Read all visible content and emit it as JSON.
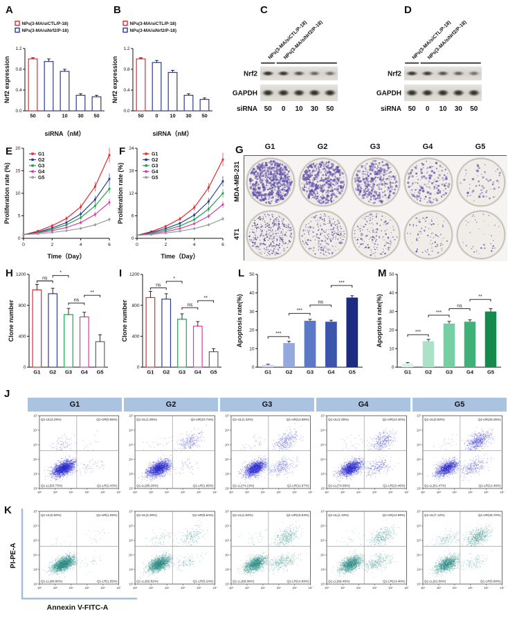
{
  "panel_labels": {
    "A": "A",
    "B": "B",
    "C": "C",
    "D": "D",
    "E": "E",
    "F": "F",
    "G": "G",
    "H": "H",
    "I": "I",
    "J": "J",
    "K": "K",
    "L": "L",
    "M": "M"
  },
  "colors": {
    "red": "#e8262d",
    "blue": "#2b3a8f",
    "green": "#1ca04a",
    "magenta": "#d63ba4",
    "gray": "#9a9a9a",
    "header_bg": "#a9c3e1",
    "annot_blue": "#a3bedb"
  },
  "blots": {
    "C": {
      "group_labels": [
        "NPs(3-MA/siCTL/P-18)",
        "NPs(3-MA/siNrf2/P-18)"
      ],
      "rows": [
        {
          "name": "Nrf2",
          "intensities": [
            0.88,
            0.82,
            0.6,
            0.45,
            0.4
          ]
        },
        {
          "name": "GAPDH",
          "intensities": [
            0.92,
            0.92,
            0.9,
            0.92,
            0.9
          ]
        }
      ],
      "sirna_label": "siRNA",
      "lanes": [
        "50",
        "0",
        "10",
        "30",
        "50"
      ]
    },
    "D": {
      "group_labels": [
        "NPs(3-MA/siCTL/P-18)",
        "NPs(3-MA/siNrf2/P-18)"
      ],
      "rows": [
        {
          "name": "Nrf2",
          "intensities": [
            0.8,
            0.75,
            0.58,
            0.48,
            0.38
          ]
        },
        {
          "name": "GAPDH",
          "intensities": [
            0.9,
            0.92,
            0.9,
            0.9,
            0.88
          ]
        }
      ],
      "sirna_label": "siRNA",
      "lanes": [
        "50",
        "0",
        "10",
        "30",
        "50"
      ]
    }
  },
  "colony": {
    "col_headers": [
      "G1",
      "G2",
      "G3",
      "G4",
      "G5"
    ],
    "rows": [
      {
        "name": "MDA-MB-231",
        "densities": [
          650,
          480,
          320,
          160,
          60
        ],
        "dot_r": 1.25,
        "dot_rgb": "96,82,168"
      },
      {
        "name": "4T1",
        "densities": [
          380,
          260,
          170,
          90,
          40
        ],
        "dot_r": 0.85,
        "dot_rgb": "84,72,150"
      }
    ]
  },
  "flow": {
    "headers": [
      "G1",
      "G2",
      "G3",
      "G4",
      "G5"
    ],
    "ticks": [
      "10²",
      "10³",
      "10⁴",
      "10⁵",
      "10⁶",
      "10⁷"
    ],
    "quadrant_prefix": "Q1",
    "x_axis_label": "Annexin V-FITC-A",
    "y_axis_label": "PI-PE-A",
    "J": {
      "point_color": "#2626cc",
      "plots": [
        {
          "UL": 3.29,
          "UR": 0.55,
          "LL": 93.73,
          "LR": 2.43
        },
        {
          "UL": 1.05,
          "UR": 10.74,
          "LL": 86.26,
          "LR": 1.95
        },
        {
          "UL": 1.32,
          "UR": 12.88,
          "LL": 74.13,
          "LR": 11.67
        },
        {
          "UL": 1.05,
          "UR": 14.4,
          "LL": 74.09,
          "LR": 10.46
        },
        {
          "UL": 0.82,
          "UR": 25.25,
          "LL": 61.47,
          "LR": 12.46
        }
      ]
    },
    "K": {
      "point_color": "#2c8c86",
      "plots": [
        {
          "UL": 0.5,
          "UR": 1.05,
          "LL": 96.9,
          "LR": 1.55
        },
        {
          "UL": 3.3,
          "UR": 8.64,
          "LL": 82.82,
          "LR": 5.24
        },
        {
          "UL": 1.5,
          "UR": 15.53,
          "LL": 68.08,
          "LR": 14.89
        },
        {
          "UL": 1.15,
          "UR": 14.99,
          "LL": 69.46,
          "LR": 14.4
        },
        {
          "UL": 7.12,
          "UR": 25.7,
          "LL": 61.5,
          "LR": 5.68
        }
      ]
    }
  },
  "chart_data": {
    "A": {
      "type": "bar",
      "ylabel": "Nrf2 expression",
      "xlabel": "siRNA（nM）",
      "categories": [
        "50",
        "0",
        "10",
        "30",
        "50"
      ],
      "values": [
        1.0,
        0.95,
        0.76,
        0.3,
        0.27
      ],
      "errors": [
        0.02,
        0.05,
        0.04,
        0.03,
        0.03
      ],
      "bar_strokes": [
        "#e8262d",
        "#2b3a8f",
        "#2b3a8f",
        "#2b3a8f",
        "#2b3a8f"
      ],
      "ylim": [
        0,
        1.2
      ],
      "yticks": [
        "0.0",
        "0.4",
        "0.8",
        "1.2"
      ],
      "legend": [
        {
          "label": "NPs(3-MA/siCTL/P-18)",
          "color": "#e8262d"
        },
        {
          "label": "NPs(3-MA/siNrf2/P-18)",
          "color": "#2b3a8f"
        }
      ]
    },
    "B": {
      "type": "bar",
      "ylabel": "Nrf2 expression",
      "xlabel": "siRNA（nM）",
      "categories": [
        "50",
        "0",
        "10",
        "30",
        "50"
      ],
      "values": [
        1.0,
        0.93,
        0.74,
        0.3,
        0.22
      ],
      "errors": [
        0.02,
        0.04,
        0.04,
        0.03,
        0.03
      ],
      "bar_strokes": [
        "#e8262d",
        "#2b3a8f",
        "#2b3a8f",
        "#2b3a8f",
        "#2b3a8f"
      ],
      "ylim": [
        0,
        1.2
      ],
      "yticks": [
        "0.0",
        "0.4",
        "0.8",
        "1.2"
      ],
      "legend": [
        {
          "label": "NPs(3-MA/siCTL/P-18)",
          "color": "#e8262d"
        },
        {
          "label": "NPs(3-MA/siNrf2/P-18)",
          "color": "#2b3a8f"
        }
      ]
    },
    "E": {
      "type": "line",
      "ylabel": "Proliferation rate (%)",
      "xlabel": "Time（Day）",
      "x": [
        0,
        1,
        2,
        3,
        4,
        5,
        6
      ],
      "xticks": [
        0,
        2,
        4,
        6
      ],
      "ylim": [
        0,
        20
      ],
      "yticks": [
        "0",
        "5",
        "10",
        "15",
        "20"
      ],
      "series": [
        {
          "name": "G1",
          "color": "#e8262d",
          "values": [
            0.8,
            1.6,
            2.8,
            4.4,
            7.0,
            11.5,
            18.5
          ]
        },
        {
          "name": "G2",
          "color": "#2b3a8f",
          "values": [
            0.8,
            1.4,
            2.3,
            3.5,
            5.4,
            8.6,
            13.2
          ]
        },
        {
          "name": "G3",
          "color": "#1ca04a",
          "values": [
            0.8,
            1.3,
            2.0,
            3.0,
            4.6,
            7.2,
            11.0
          ]
        },
        {
          "name": "G4",
          "color": "#d63ba4",
          "values": [
            0.8,
            1.2,
            1.7,
            2.4,
            3.5,
            5.3,
            8.0
          ]
        },
        {
          "name": "G5",
          "color": "#9a9a9a",
          "values": [
            0.8,
            1.0,
            1.3,
            1.7,
            2.2,
            3.0,
            4.2
          ]
        }
      ]
    },
    "F": {
      "type": "line",
      "ylabel": "Proliferation rate (%)",
      "xlabel": "Time（Day）",
      "x": [
        0,
        1,
        2,
        3,
        4,
        5,
        6
      ],
      "xticks": [
        0,
        2,
        4,
        6
      ],
      "ylim": [
        0,
        24
      ],
      "yticks": [
        "0",
        "6",
        "12",
        "18",
        "24"
      ],
      "series": [
        {
          "name": "G1",
          "color": "#e8262d",
          "values": [
            0.8,
            1.8,
            3.2,
            5.2,
            8.2,
            13.5,
            21.0
          ]
        },
        {
          "name": "G2",
          "color": "#2b3a8f",
          "values": [
            0.8,
            1.6,
            2.6,
            4.0,
            6.2,
            9.8,
            15.2
          ]
        },
        {
          "name": "G3",
          "color": "#1ca04a",
          "values": [
            0.8,
            1.4,
            2.2,
            3.3,
            5.0,
            7.8,
            12.0
          ]
        },
        {
          "name": "G4",
          "color": "#d63ba4",
          "values": [
            0.8,
            1.2,
            1.8,
            2.6,
            3.9,
            5.9,
            9.0
          ]
        },
        {
          "name": "G5",
          "color": "#9a9a9a",
          "values": [
            0.8,
            1.0,
            1.4,
            1.9,
            2.6,
            3.6,
            5.2
          ]
        }
      ]
    },
    "H": {
      "type": "bar",
      "ylabel": "Clone number",
      "xlabel": "",
      "categories": [
        "G1",
        "G2",
        "G3",
        "G4",
        "G5"
      ],
      "values": [
        1000,
        950,
        680,
        650,
        330
      ],
      "errors": [
        70,
        70,
        80,
        60,
        90
      ],
      "bar_strokes": [
        "#e8262d",
        "#2b3a8f",
        "#1ca04a",
        "#d63ba4",
        "#606060"
      ],
      "ylim": [
        0,
        1200
      ],
      "yticks": [
        "0",
        "400",
        "800",
        "1200"
      ],
      "significance": [
        {
          "a": 0,
          "b": 1,
          "label": "ns",
          "y": 1115
        },
        {
          "a": 1,
          "b": 2,
          "label": "*",
          "y": 1185
        },
        {
          "a": 2,
          "b": 3,
          "label": "ns",
          "y": 830
        },
        {
          "a": 3,
          "b": 4,
          "label": "**",
          "y": 930
        }
      ]
    },
    "I": {
      "type": "bar",
      "ylabel": "Clone number",
      "xlabel": "",
      "categories": [
        "G1",
        "G2",
        "G3",
        "G4",
        "G5"
      ],
      "values": [
        900,
        880,
        620,
        530,
        200
      ],
      "errors": [
        80,
        70,
        70,
        60,
        40
      ],
      "bar_strokes": [
        "#e8262d",
        "#2b3a8f",
        "#1ca04a",
        "#d63ba4",
        "#606060"
      ],
      "ylim": [
        0,
        1200
      ],
      "yticks": [
        "0",
        "400",
        "800",
        "1200"
      ],
      "significance": [
        {
          "a": 0,
          "b": 1,
          "label": "ns",
          "y": 1025
        },
        {
          "a": 1,
          "b": 2,
          "label": "*",
          "y": 1110
        },
        {
          "a": 2,
          "b": 3,
          "label": "ns",
          "y": 770
        },
        {
          "a": 3,
          "b": 4,
          "label": "**",
          "y": 860
        }
      ]
    },
    "L": {
      "type": "bar",
      "ylabel": "Apoptosis rate(%)",
      "xlabel": "",
      "categories": [
        "G1",
        "G2",
        "G3",
        "G4",
        "G5"
      ],
      "values": [
        1.2,
        13,
        25,
        24.5,
        37.5
      ],
      "errors": [
        0.4,
        1.0,
        0.8,
        0.8,
        1.0
      ],
      "bar_fills": [
        "#ccd8f1",
        "#93aadf",
        "#5b79c6",
        "#3a55ab",
        "#1c2c80"
      ],
      "ylim": [
        0,
        50
      ],
      "yticks": [
        "0",
        "10",
        "20",
        "30",
        "40",
        "50"
      ],
      "significance": [
        {
          "a": 0,
          "b": 1,
          "label": "***",
          "y": 16.5
        },
        {
          "a": 1,
          "b": 2,
          "label": "***",
          "y": 29
        },
        {
          "a": 2,
          "b": 3,
          "label": "ns",
          "y": 33.5
        },
        {
          "a": 3,
          "b": 4,
          "label": "***",
          "y": 44
        }
      ]
    },
    "M": {
      "type": "bar",
      "ylabel": "Apoptosis rate(%)",
      "xlabel": "",
      "categories": [
        "G1",
        "G2",
        "G3",
        "G4",
        "G5"
      ],
      "values": [
        2,
        14,
        23.5,
        24.5,
        30
      ],
      "errors": [
        0.5,
        1.0,
        1.2,
        1.0,
        1.5
      ],
      "bar_fills": [
        "#daf3e7",
        "#a9e2c6",
        "#74cfa2",
        "#3fb176",
        "#168a4c"
      ],
      "ylim": [
        0,
        50
      ],
      "yticks": [
        "0",
        "10",
        "20",
        "30",
        "40",
        "50"
      ],
      "significance": [
        {
          "a": 0,
          "b": 1,
          "label": "***",
          "y": 17.5
        },
        {
          "a": 1,
          "b": 2,
          "label": "***",
          "y": 28
        },
        {
          "a": 2,
          "b": 3,
          "label": "ns",
          "y": 31.5
        },
        {
          "a": 3,
          "b": 4,
          "label": "**",
          "y": 36.5
        }
      ]
    }
  }
}
